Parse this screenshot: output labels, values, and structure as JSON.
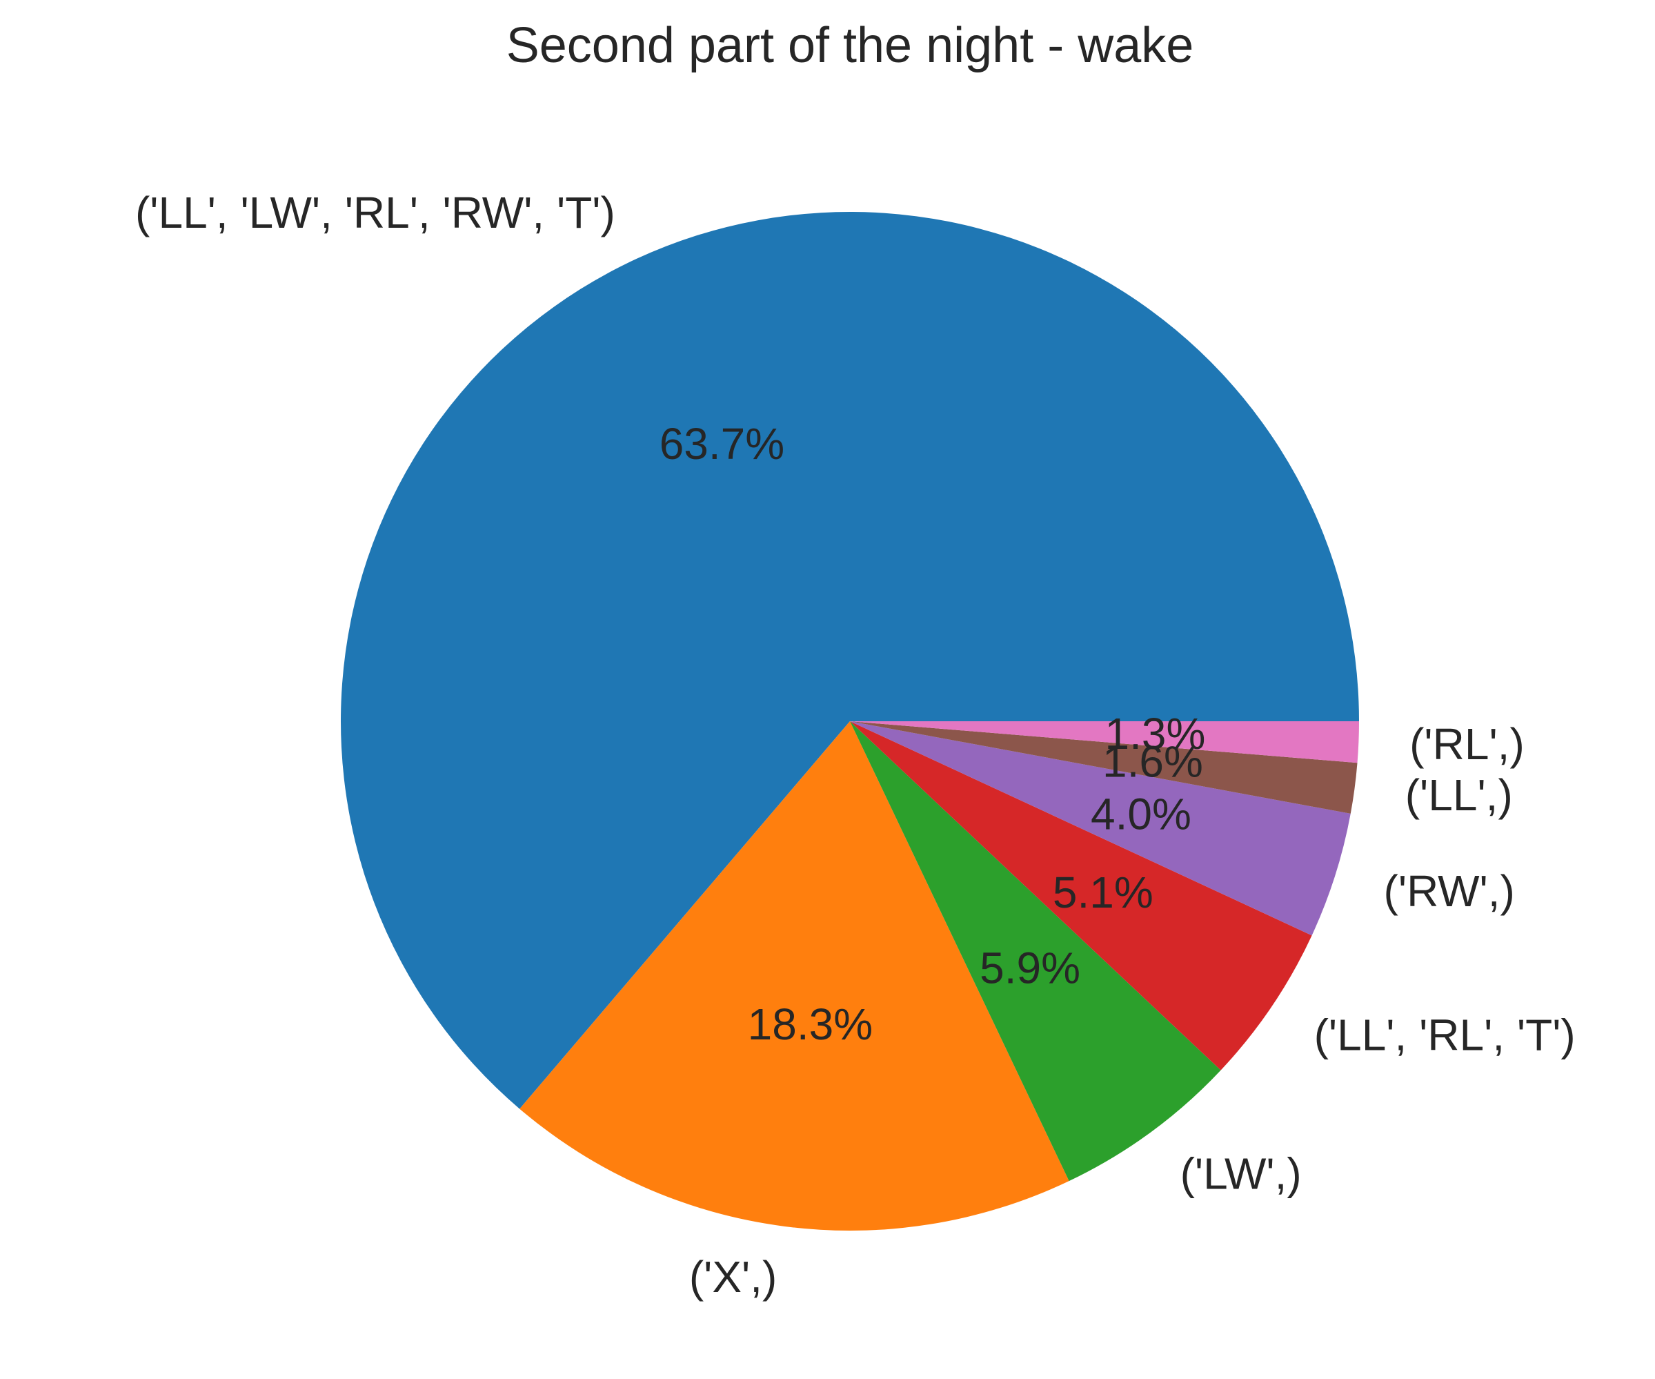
{
  "chart_data": {
    "type": "pie",
    "title": "Second part of the night - wake",
    "start_angle_deg": 0,
    "direction": "counterclockwise",
    "slices": [
      {
        "label": "('LL', 'LW', 'RL', 'RW', 'T')",
        "value": 63.7,
        "pct_label": "63.7%",
        "color": "#1f77b4"
      },
      {
        "label": "('X',)",
        "value": 18.3,
        "pct_label": "18.3%",
        "color": "#ff7f0e"
      },
      {
        "label": "('LW',)",
        "value": 5.9,
        "pct_label": "5.9%",
        "color": "#2ca02c"
      },
      {
        "label": "('LL', 'RL', 'T')",
        "value": 5.1,
        "pct_label": "5.1%",
        "color": "#d62728"
      },
      {
        "label": "('RW',)",
        "value": 4.0,
        "pct_label": "4.0%",
        "color": "#9467bd"
      },
      {
        "label": "('LL',)",
        "value": 1.6,
        "pct_label": "1.6%",
        "color": "#8c564b"
      },
      {
        "label": "('RL',)",
        "value": 1.3,
        "pct_label": "1.3%",
        "color": "#e377c2"
      }
    ]
  }
}
